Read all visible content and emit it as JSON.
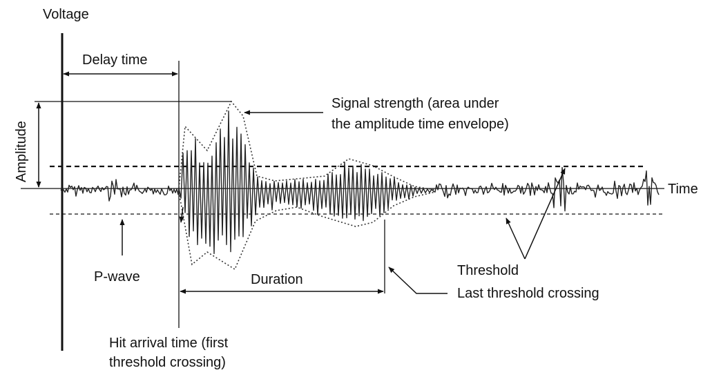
{
  "labels": {
    "voltage": "Voltage",
    "delay_time": "Delay time",
    "amplitude": "Amplitude",
    "signal_strength_line1": "Signal strength (area under",
    "signal_strength_line2": "the amplitude time envelope)",
    "time": "Time",
    "p_wave": "P-wave",
    "duration": "Duration",
    "threshold": "Threshold",
    "last_threshold_crossing": "Last threshold crossing",
    "hit_arrival_line1": "Hit arrival time (first",
    "hit_arrival_line2": "threshold crossing)"
  },
  "colors": {
    "ink": "#111111",
    "waveform": "#222222"
  }
}
